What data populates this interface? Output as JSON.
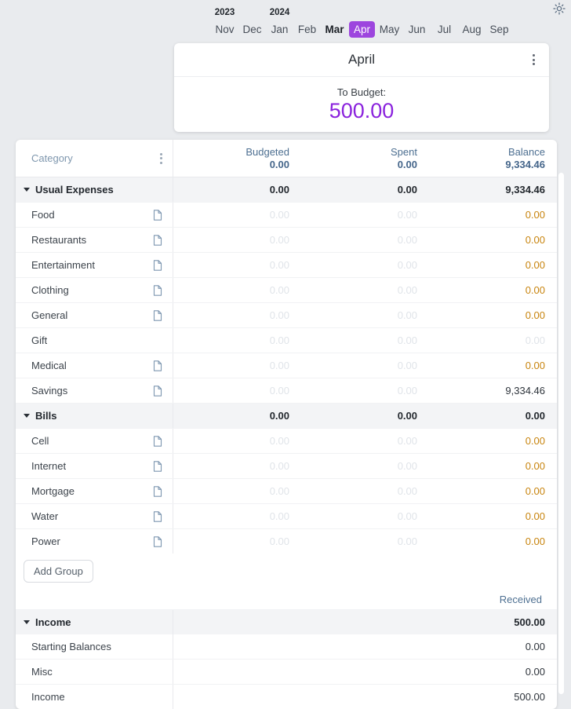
{
  "colors": {
    "accent_purple": "#8a22dd",
    "month_pill_purple": "#9d46de",
    "balance_warning_orange": "#c8840e",
    "header_slate_blue": "#4d6f91",
    "page_background": "#e9ebee"
  },
  "icons": {
    "theme": "sun-icon",
    "menu": "kebab-menu-icon",
    "collapse": "triangle-down-icon",
    "category_note": "note-icon"
  },
  "month_nav": {
    "years": [
      {
        "label": "2023",
        "above_month": "Nov"
      },
      {
        "label": "2024",
        "above_month": "Jan"
      }
    ],
    "months": [
      {
        "label": "Nov",
        "state": "normal"
      },
      {
        "label": "Dec",
        "state": "normal"
      },
      {
        "label": "Jan",
        "state": "normal"
      },
      {
        "label": "Feb",
        "state": "normal"
      },
      {
        "label": "Mar",
        "state": "current"
      },
      {
        "label": "Apr",
        "state": "selected"
      },
      {
        "label": "May",
        "state": "normal"
      },
      {
        "label": "Jun",
        "state": "normal"
      },
      {
        "label": "Jul",
        "state": "normal"
      },
      {
        "label": "Aug",
        "state": "normal"
      },
      {
        "label": "Sep",
        "state": "normal"
      }
    ]
  },
  "month_card": {
    "title": "April",
    "to_budget_label": "To Budget:",
    "to_budget_value": "500.00"
  },
  "table": {
    "category_header": "Category",
    "columns": [
      {
        "label": "Budgeted",
        "total": "0.00"
      },
      {
        "label": "Spent",
        "total": "0.00"
      },
      {
        "label": "Balance",
        "total": "9,334.46"
      }
    ],
    "groups": [
      {
        "name": "Usual Expenses",
        "budgeted": "0.00",
        "spent": "0.00",
        "balance": "9,334.46",
        "rows": [
          {
            "name": "Food",
            "has_note_icon": true,
            "budgeted": "0.00",
            "spent": "0.00",
            "balance": "0.00",
            "balance_state": "warning"
          },
          {
            "name": "Restaurants",
            "has_note_icon": true,
            "budgeted": "0.00",
            "spent": "0.00",
            "balance": "0.00",
            "balance_state": "warning"
          },
          {
            "name": "Entertainment",
            "has_note_icon": true,
            "budgeted": "0.00",
            "spent": "0.00",
            "balance": "0.00",
            "balance_state": "warning"
          },
          {
            "name": "Clothing",
            "has_note_icon": true,
            "budgeted": "0.00",
            "spent": "0.00",
            "balance": "0.00",
            "balance_state": "warning"
          },
          {
            "name": "General",
            "has_note_icon": true,
            "budgeted": "0.00",
            "spent": "0.00",
            "balance": "0.00",
            "balance_state": "warning"
          },
          {
            "name": "Gift",
            "has_note_icon": false,
            "budgeted": "0.00",
            "spent": "0.00",
            "balance": "0.00",
            "balance_state": "muted"
          },
          {
            "name": "Medical",
            "has_note_icon": true,
            "budgeted": "0.00",
            "spent": "0.00",
            "balance": "0.00",
            "balance_state": "warning"
          },
          {
            "name": "Savings",
            "has_note_icon": true,
            "budgeted": "0.00",
            "spent": "0.00",
            "balance": "9,334.46",
            "balance_state": "normal"
          }
        ]
      },
      {
        "name": "Bills",
        "budgeted": "0.00",
        "spent": "0.00",
        "balance": "0.00",
        "rows": [
          {
            "name": "Cell",
            "has_note_icon": true,
            "budgeted": "0.00",
            "spent": "0.00",
            "balance": "0.00",
            "balance_state": "warning"
          },
          {
            "name": "Internet",
            "has_note_icon": true,
            "budgeted": "0.00",
            "spent": "0.00",
            "balance": "0.00",
            "balance_state": "warning"
          },
          {
            "name": "Mortgage",
            "has_note_icon": true,
            "budgeted": "0.00",
            "spent": "0.00",
            "balance": "0.00",
            "balance_state": "warning"
          },
          {
            "name": "Water",
            "has_note_icon": true,
            "budgeted": "0.00",
            "spent": "0.00",
            "balance": "0.00",
            "balance_state": "warning"
          },
          {
            "name": "Power",
            "has_note_icon": true,
            "budgeted": "0.00",
            "spent": "0.00",
            "balance": "0.00",
            "balance_state": "warning"
          }
        ]
      }
    ],
    "add_group_label": "Add Group",
    "income_header": "Received",
    "income_group": {
      "name": "Income",
      "received": "500.00",
      "rows": [
        {
          "name": "Starting Balances",
          "received": "0.00"
        },
        {
          "name": "Misc",
          "received": "0.00"
        },
        {
          "name": "Income",
          "received": "500.00"
        }
      ]
    }
  }
}
